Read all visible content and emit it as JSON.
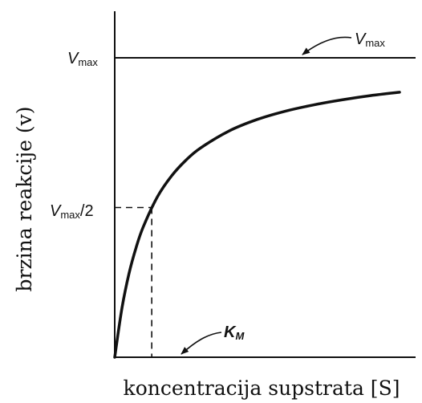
{
  "chart_data": {
    "type": "line",
    "xlabel": "koncentracija supstrata [S]",
    "ylabel": "brzina reakcije (v)",
    "xlim": [
      0,
      10
    ],
    "ylim": [
      0,
      1.0
    ],
    "grid": false,
    "series": [
      {
        "name": "",
        "x": [
          0,
          0.25,
          0.5,
          0.75,
          1,
          1.5,
          2,
          2.5,
          3,
          4,
          5,
          6,
          7,
          8,
          9,
          10
        ],
        "y": [
          0,
          0.162,
          0.279,
          0.366,
          0.435,
          0.536,
          0.606,
          0.658,
          0.698,
          0.755,
          0.794,
          0.822,
          0.843,
          0.86,
          0.874,
          0.885
        ]
      }
    ],
    "reference_lines": {
      "vmax_value": 1.0,
      "half_vmax_value": 0.5,
      "km_value": 1.3
    },
    "tick_labels": {
      "vmax": {
        "main": "V",
        "sub": "max"
      },
      "vmax_half": {
        "main": "V",
        "sub": "max",
        "rest": "/2"
      }
    },
    "annotations": {
      "vmax": {
        "main": "V",
        "sub": "max",
        "color": "#29a3d8"
      },
      "km": {
        "main": "K",
        "sub": "M",
        "color": "#d4147a"
      }
    },
    "colors": {
      "curve": "#111111",
      "axis": "#111111"
    }
  }
}
